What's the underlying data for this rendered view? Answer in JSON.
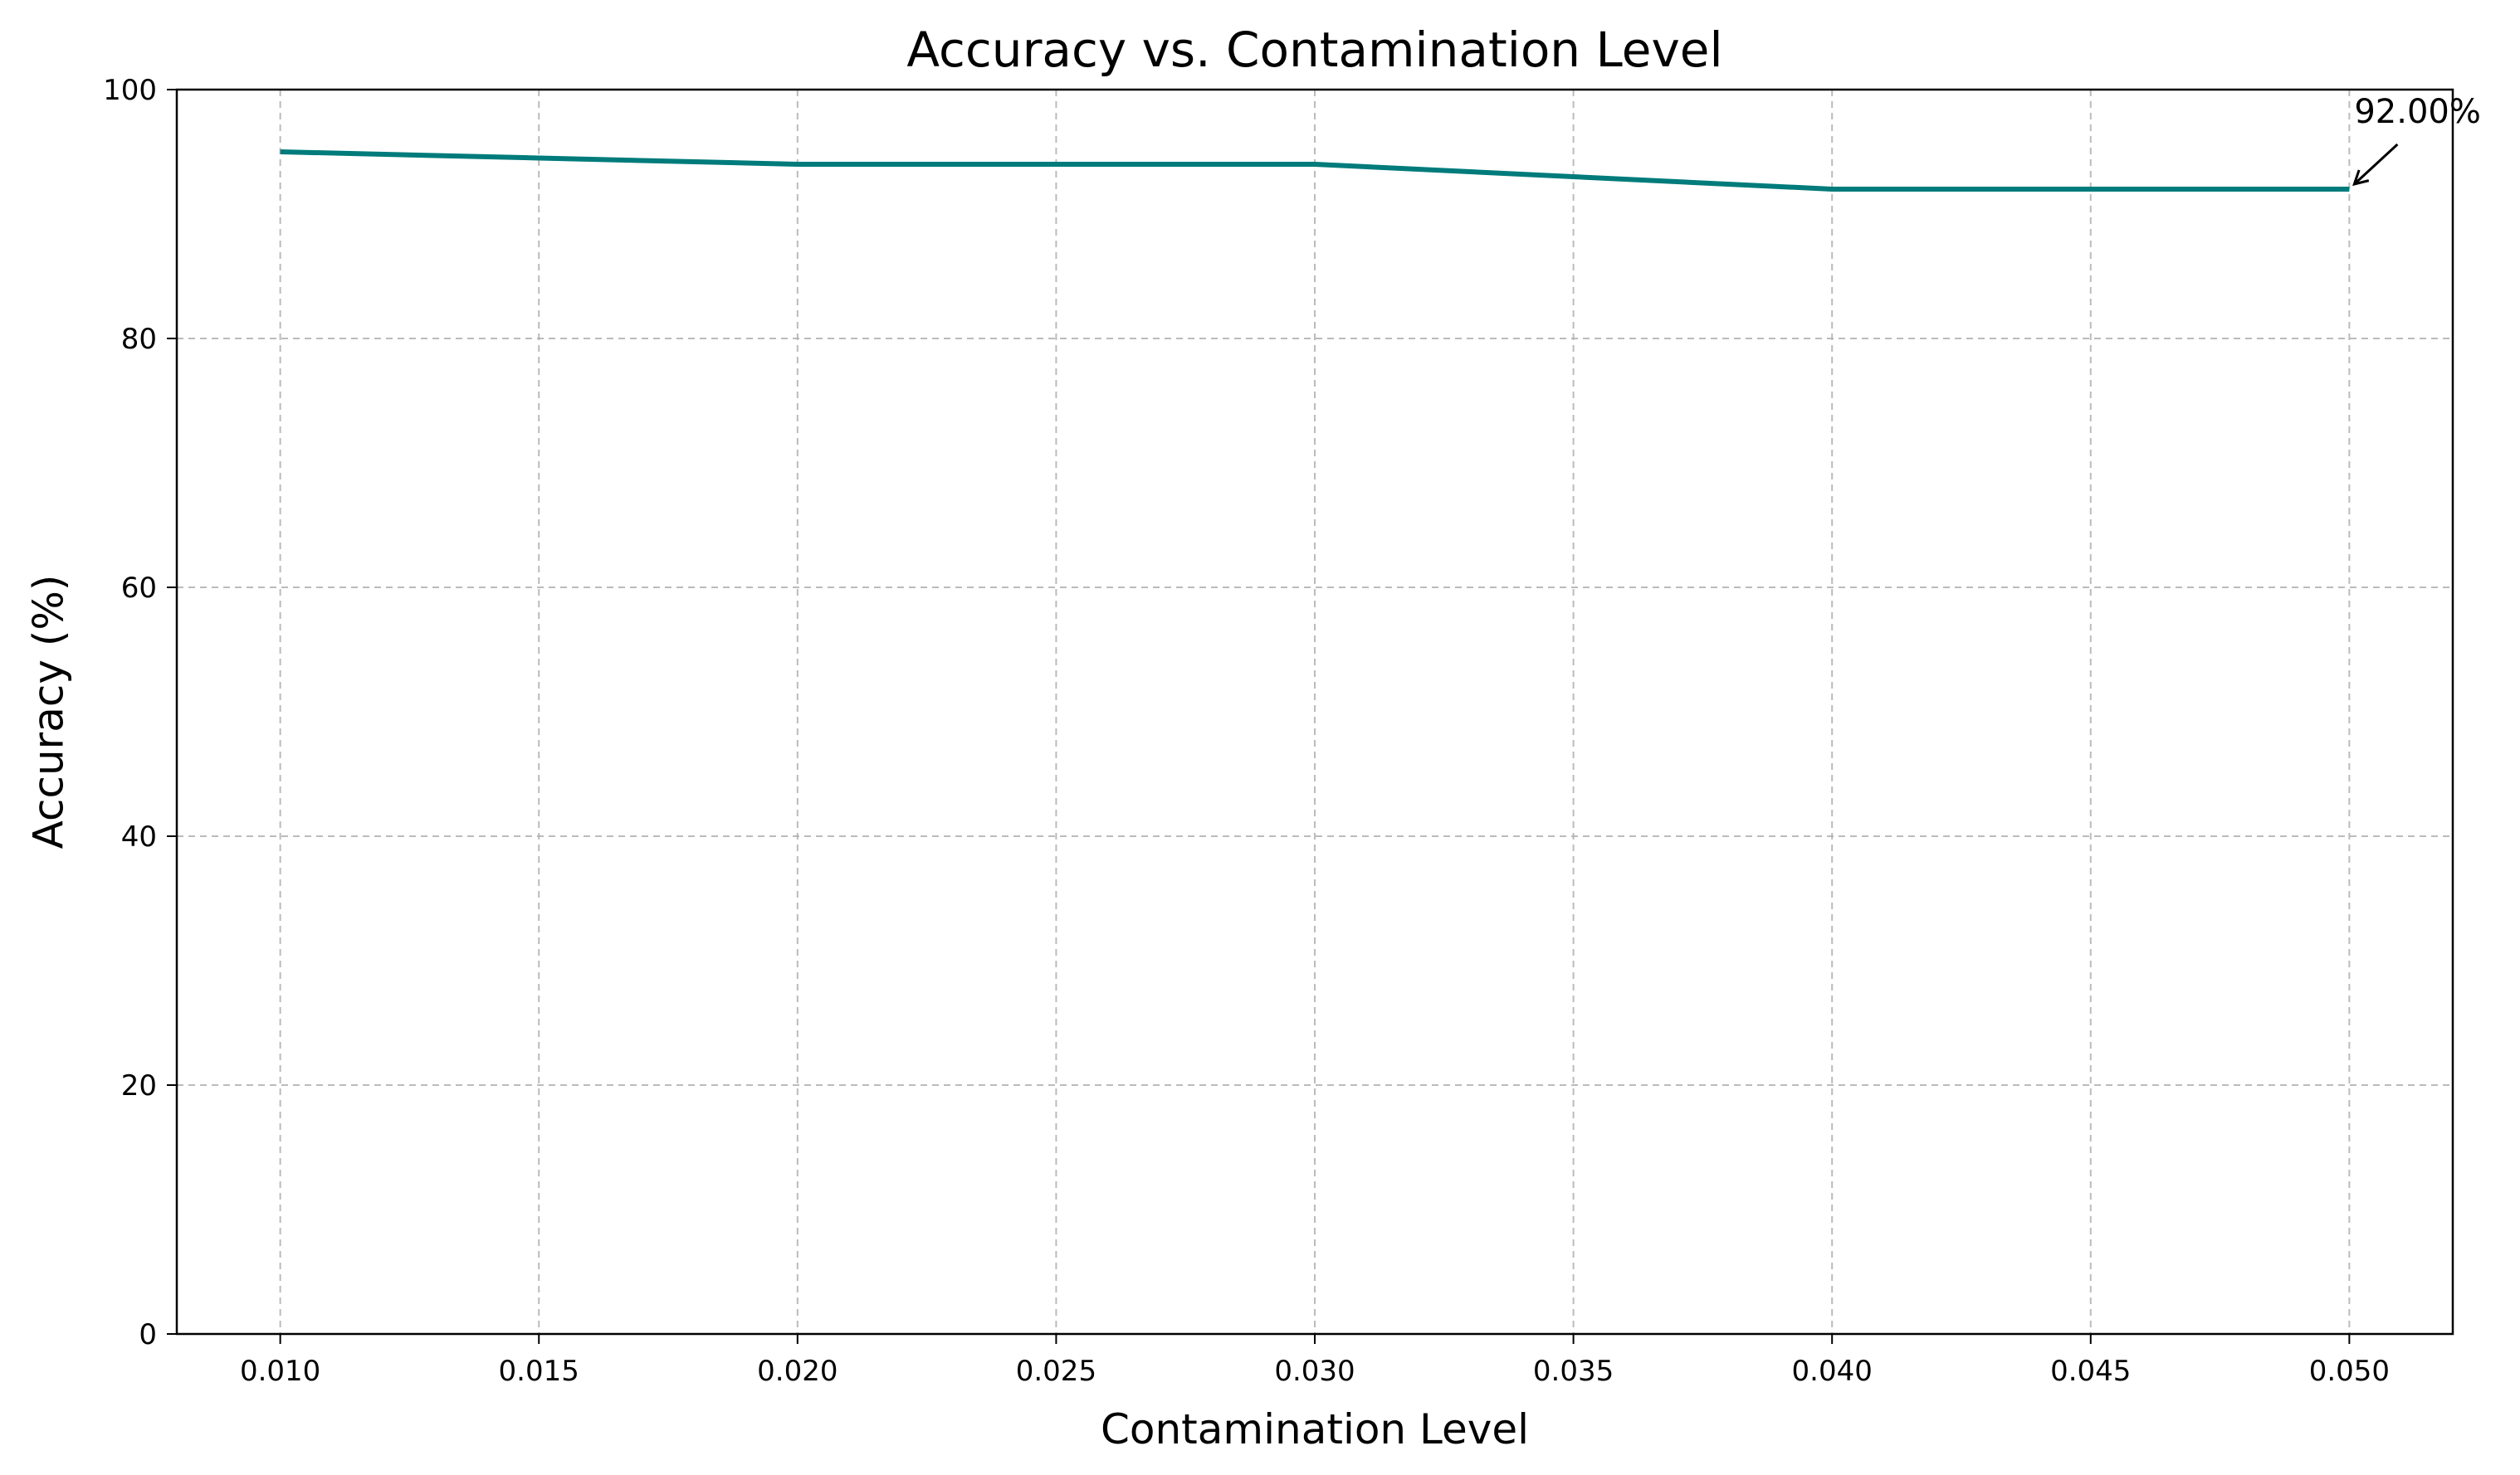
{
  "chart_data": {
    "type": "line",
    "title": "Accuracy vs. Contamination Level",
    "xlabel": "Contamination Level",
    "ylabel": "Accuracy (%)",
    "xlim": [
      0.008,
      0.052
    ],
    "ylim": [
      0,
      100
    ],
    "x_ticks": [
      0.01,
      0.015,
      0.02,
      0.025,
      0.03,
      0.035,
      0.04,
      0.045,
      0.05
    ],
    "x_tick_labels": [
      "0.010",
      "0.015",
      "0.020",
      "0.025",
      "0.030",
      "0.035",
      "0.040",
      "0.045",
      "0.050"
    ],
    "y_ticks": [
      0,
      20,
      40,
      60,
      80,
      100
    ],
    "y_tick_labels": [
      "0",
      "20",
      "40",
      "60",
      "80",
      "100"
    ],
    "grid": true,
    "series": [
      {
        "color": "#007b7b",
        "x": [
          0.01,
          0.015,
          0.02,
          0.025,
          0.03,
          0.035,
          0.04,
          0.045,
          0.05
        ],
        "y": [
          95.0,
          94.5,
          94.0,
          94.0,
          94.0,
          93.0,
          92.0,
          92.0,
          92.0
        ]
      }
    ],
    "annotations": [
      {
        "text": "92.00%",
        "x": 0.05,
        "y": 92.0
      }
    ]
  }
}
